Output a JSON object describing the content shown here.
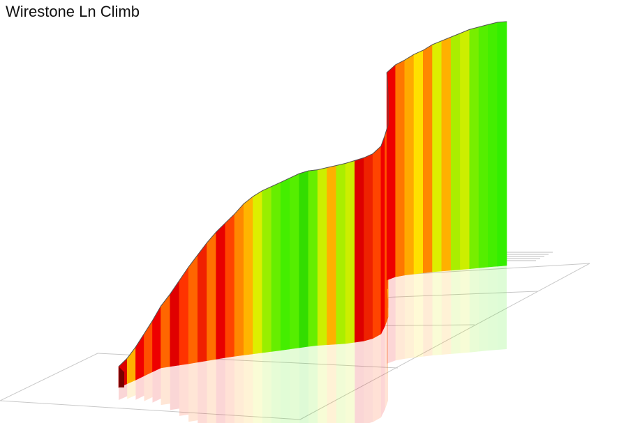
{
  "title": "Wirestone Ln Climb",
  "chart_data": {
    "type": "area",
    "title": "Wirestone Ln Climb",
    "xlabel": "",
    "ylabel": "",
    "view": "3d-ribbon",
    "grid": true,
    "ground_reflection": true,
    "x": [
      0,
      1,
      2,
      3,
      4,
      5,
      6,
      7,
      8,
      9,
      10,
      11,
      12,
      13,
      14,
      15,
      16,
      17,
      18,
      19,
      20,
      21,
      22,
      23,
      24,
      25,
      26,
      27,
      28,
      29,
      30,
      31,
      32,
      33,
      34,
      35,
      36,
      37,
      38,
      39,
      40,
      41,
      42,
      43,
      44,
      45,
      46,
      47,
      48
    ],
    "elevation": [
      0,
      3,
      8,
      14,
      20,
      27,
      34,
      42,
      50,
      57,
      64,
      70,
      75,
      80,
      86,
      90,
      93,
      95,
      97,
      99,
      101,
      102,
      102,
      103,
      104,
      105,
      106,
      107,
      108,
      110,
      112,
      113,
      116,
      119,
      121,
      123,
      126,
      128,
      131,
      133,
      136,
      138,
      140,
      142,
      144,
      145,
      146,
      147,
      147
    ],
    "gradient_colors": [
      "#dd0000",
      "#ffb000",
      "#f00000",
      "#ff5000",
      "#ee0000",
      "#ff6600",
      "#e00000",
      "#ff3300",
      "#ff6600",
      "#f02000",
      "#ff7000",
      "#e80000",
      "#ff4400",
      "#ff8800",
      "#ffb400",
      "#ddee00",
      "#99ee00",
      "#66ee00",
      "#44ee00",
      "#55ee00",
      "#33dd00",
      "#66ee00",
      "#ccee00",
      "#ffb000",
      "#aaee00",
      "#ccee00",
      "#dd0000",
      "#ee2200",
      "#ff4400",
      "#f00000",
      "#ff5500",
      "#ffaa00",
      "#ff6600",
      "#ffcc00",
      "#ff3300",
      "#ee0000",
      "#ff7700",
      "#ffaa00",
      "#ffe000",
      "#ff8800",
      "#ddee00",
      "#ffb000",
      "#aaee00",
      "#ccee00",
      "#77ee00",
      "#55ee00",
      "#44ee00",
      "#33ee00"
    ]
  }
}
